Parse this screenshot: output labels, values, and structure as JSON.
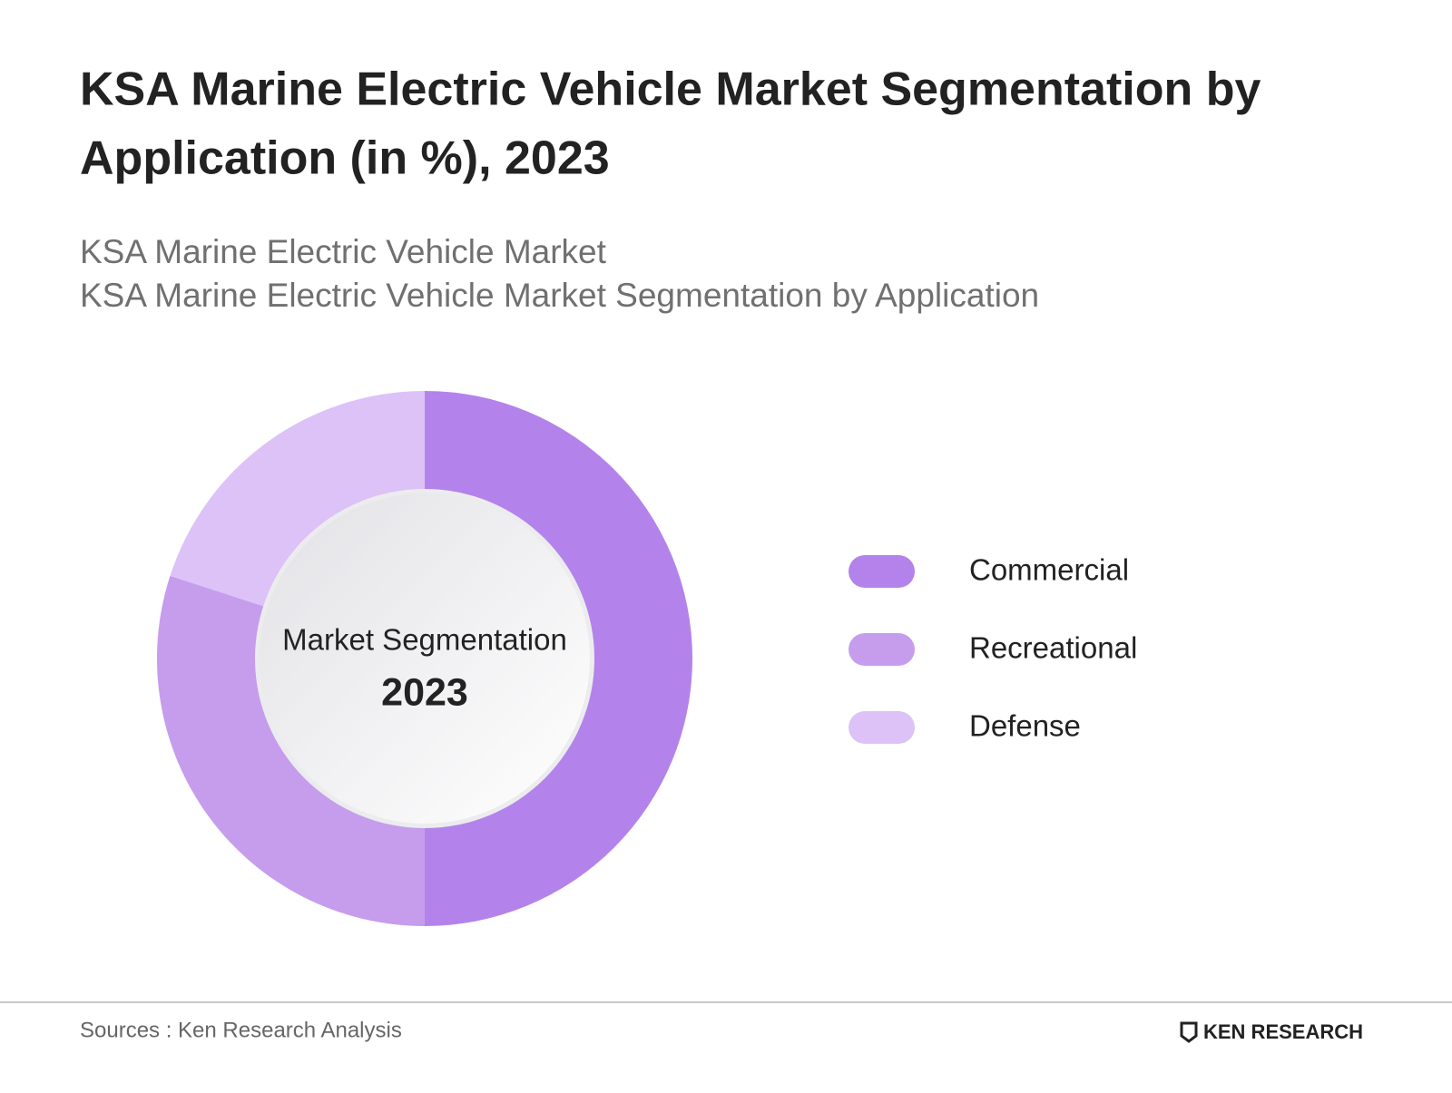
{
  "chart_data": {
    "type": "donut",
    "title": "KSA Marine Electric Vehicle Market Segmentation by Application (in %), 2023",
    "subtitle": [
      "KSA Marine Electric Vehicle Market",
      "KSA Marine Electric Vehicle Market Segmentation by Application"
    ],
    "center_label": "Market Segmentation",
    "center_year": "2023",
    "categories": [
      "Commercial",
      "Recreational",
      "Defense"
    ],
    "values": [
      50,
      30,
      20
    ],
    "colors": [
      "#b383eb",
      "#c69ded",
      "#dcc2f7"
    ],
    "legend": "right",
    "source": "Sources : Ken Research Analysis",
    "logo": "KEN RESEARCH"
  }
}
